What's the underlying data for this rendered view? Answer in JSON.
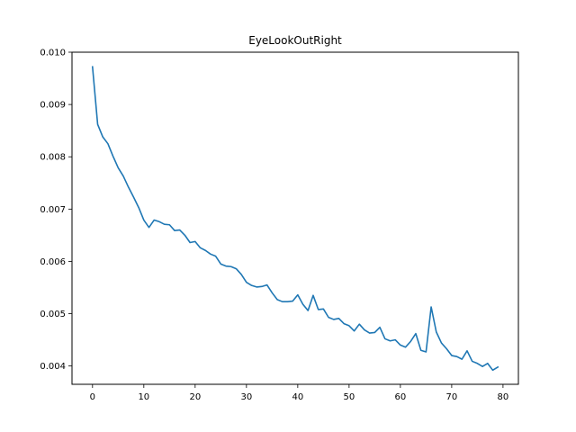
{
  "chart_data": {
    "type": "line",
    "title": "EyeLookOutRight",
    "xlabel": "",
    "ylabel": "",
    "xlim": [
      -4,
      83
    ],
    "ylim": [
      0.00365,
      0.01
    ],
    "grid": false,
    "x_ticks": [
      0,
      10,
      20,
      30,
      40,
      50,
      60,
      70,
      80
    ],
    "x_tick_labels": [
      "0",
      "10",
      "20",
      "30",
      "40",
      "50",
      "60",
      "70",
      "80"
    ],
    "y_ticks": [
      0.004,
      0.005,
      0.006,
      0.007,
      0.008,
      0.009,
      0.01
    ],
    "y_tick_labels": [
      "0.004",
      "0.005",
      "0.006",
      "0.007",
      "0.008",
      "0.009",
      "0.010"
    ],
    "series": [
      {
        "color": "#1f77b4",
        "x": [
          0,
          1,
          2,
          3,
          4,
          5,
          6,
          7,
          8,
          9,
          10,
          11,
          12,
          13,
          14,
          15,
          16,
          17,
          18,
          19,
          20,
          21,
          22,
          23,
          24,
          25,
          26,
          27,
          28,
          29,
          30,
          31,
          32,
          33,
          34,
          35,
          36,
          37,
          38,
          39,
          40,
          41,
          42,
          43,
          44,
          45,
          46,
          47,
          48,
          49,
          50,
          51,
          52,
          53,
          54,
          55,
          56,
          57,
          58,
          59,
          60,
          61,
          62,
          63,
          64,
          65,
          66,
          67,
          68,
          69,
          70,
          71,
          72,
          73,
          74,
          75,
          76,
          77,
          78,
          79
        ],
        "y": [
          0.00972,
          0.00862,
          0.00838,
          0.00825,
          0.00801,
          0.00779,
          0.00763,
          0.00742,
          0.00723,
          0.00703,
          0.00679,
          0.00665,
          0.00679,
          0.00676,
          0.00671,
          0.0067,
          0.00659,
          0.0066,
          0.0065,
          0.00636,
          0.00638,
          0.00626,
          0.00621,
          0.00614,
          0.0061,
          0.00595,
          0.00591,
          0.0059,
          0.00586,
          0.00575,
          0.0056,
          0.00554,
          0.00551,
          0.00552,
          0.00555,
          0.0054,
          0.00527,
          0.00523,
          0.00523,
          0.00524,
          0.00536,
          0.00518,
          0.00506,
          0.00535,
          0.00508,
          0.00509,
          0.00493,
          0.00489,
          0.00491,
          0.00481,
          0.00477,
          0.00467,
          0.0048,
          0.00469,
          0.00463,
          0.00464,
          0.00474,
          0.00452,
          0.00448,
          0.0045,
          0.0044,
          0.00436,
          0.00447,
          0.00462,
          0.0043,
          0.00427,
          0.00513,
          0.00465,
          0.00444,
          0.00433,
          0.0042,
          0.00418,
          0.00413,
          0.00429,
          0.00409,
          0.00405,
          0.00399,
          0.00405,
          0.00392,
          0.00398
        ]
      }
    ]
  }
}
